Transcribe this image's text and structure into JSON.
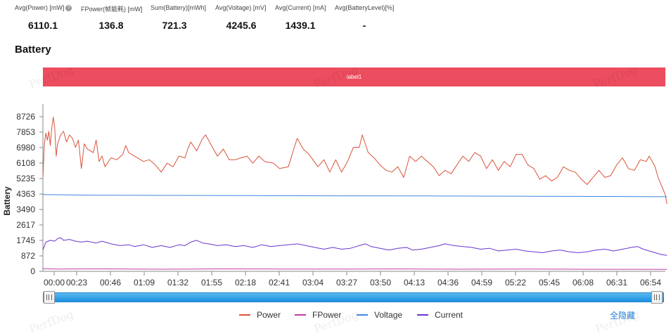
{
  "stats": [
    {
      "label": "Avg(Power) [mW]",
      "value": "6110.1",
      "help": true
    },
    {
      "label": "FPower(帧能耗) [mW]",
      "value": "136.8",
      "help": false
    },
    {
      "label": "Sum(Battery)[mWh]",
      "value": "721.3",
      "help": false
    },
    {
      "label": "Avg(Voltage) [mV]",
      "value": "4245.6",
      "help": false
    },
    {
      "label": "Avg(Current) [mA]",
      "value": "1439.1",
      "help": false
    },
    {
      "label": "Avg(BatteryLevel)[%]",
      "value": "-",
      "help": false
    }
  ],
  "section_title": "Battery",
  "label_bar": "label1",
  "watermark": "PerfDog",
  "hide_all": "全隐藏",
  "help_icon": "?",
  "chart_data": {
    "type": "line",
    "ylabel": "Battery",
    "ylim": [
      0,
      8726
    ],
    "y_ticks": [
      "0",
      "872",
      "1745",
      "2617",
      "3490",
      "4363",
      "5235",
      "6108",
      "6980",
      "7853",
      "8726"
    ],
    "x_ticks": [
      "00:00",
      "00:23",
      "00:46",
      "01:09",
      "01:32",
      "01:55",
      "02:18",
      "02:41",
      "03:04",
      "03:27",
      "03:50",
      "04:13",
      "04:36",
      "04:59",
      "05:22",
      "05:45",
      "06:08",
      "06:31",
      "06:54"
    ],
    "x_range_seconds": [
      0,
      420
    ],
    "grid": false,
    "legend_position": "bottom",
    "series": [
      {
        "name": "Power",
        "color": "#d9533b",
        "points": [
          [
            0,
            5300
          ],
          [
            1,
            7200
          ],
          [
            2,
            7800
          ],
          [
            3,
            7400
          ],
          [
            4,
            7900
          ],
          [
            5,
            7100
          ],
          [
            6,
            8100
          ],
          [
            7,
            8700
          ],
          [
            8,
            8100
          ],
          [
            9,
            6500
          ],
          [
            10,
            7200
          ],
          [
            12,
            7700
          ],
          [
            14,
            7900
          ],
          [
            16,
            7300
          ],
          [
            18,
            7700
          ],
          [
            20,
            7500
          ],
          [
            22,
            7000
          ],
          [
            24,
            7400
          ],
          [
            26,
            5800
          ],
          [
            28,
            7200
          ],
          [
            30,
            6900
          ],
          [
            34,
            6700
          ],
          [
            36,
            7400
          ],
          [
            38,
            6200
          ],
          [
            40,
            6500
          ],
          [
            42,
            5900
          ],
          [
            46,
            6400
          ],
          [
            50,
            6300
          ],
          [
            54,
            6600
          ],
          [
            56,
            7100
          ],
          [
            58,
            6700
          ],
          [
            60,
            6600
          ],
          [
            64,
            6400
          ],
          [
            68,
            6200
          ],
          [
            72,
            6300
          ],
          [
            76,
            6000
          ],
          [
            80,
            5600
          ],
          [
            84,
            6100
          ],
          [
            88,
            5900
          ],
          [
            92,
            6500
          ],
          [
            96,
            6400
          ],
          [
            98,
            6900
          ],
          [
            100,
            7300
          ],
          [
            104,
            6800
          ],
          [
            108,
            7500
          ],
          [
            110,
            7700
          ],
          [
            114,
            7100
          ],
          [
            118,
            6500
          ],
          [
            122,
            6900
          ],
          [
            126,
            6300
          ],
          [
            130,
            6300
          ],
          [
            134,
            6400
          ],
          [
            138,
            6500
          ],
          [
            142,
            6100
          ],
          [
            146,
            6500
          ],
          [
            150,
            6200
          ],
          [
            156,
            6100
          ],
          [
            160,
            5800
          ],
          [
            166,
            5900
          ],
          [
            170,
            7000
          ],
          [
            172,
            7500
          ],
          [
            176,
            6900
          ],
          [
            180,
            6600
          ],
          [
            186,
            5900
          ],
          [
            190,
            6300
          ],
          [
            194,
            5600
          ],
          [
            198,
            6300
          ],
          [
            202,
            5600
          ],
          [
            206,
            6200
          ],
          [
            210,
            7000
          ],
          [
            214,
            7000
          ],
          [
            216,
            7700
          ],
          [
            218,
            7200
          ],
          [
            220,
            6700
          ],
          [
            224,
            6400
          ],
          [
            228,
            6000
          ],
          [
            232,
            5700
          ],
          [
            236,
            5600
          ],
          [
            240,
            5900
          ],
          [
            244,
            5300
          ],
          [
            248,
            6500
          ],
          [
            252,
            6200
          ],
          [
            256,
            6500
          ],
          [
            260,
            6200
          ],
          [
            264,
            5900
          ],
          [
            268,
            5400
          ],
          [
            272,
            5700
          ],
          [
            276,
            5500
          ],
          [
            280,
            6000
          ],
          [
            284,
            6500
          ],
          [
            288,
            6200
          ],
          [
            292,
            6700
          ],
          [
            296,
            6500
          ],
          [
            300,
            5800
          ],
          [
            304,
            6300
          ],
          [
            308,
            5700
          ],
          [
            312,
            6200
          ],
          [
            316,
            5900
          ],
          [
            320,
            6600
          ],
          [
            324,
            6600
          ],
          [
            328,
            6000
          ],
          [
            332,
            5800
          ],
          [
            336,
            5200
          ],
          [
            340,
            5400
          ],
          [
            344,
            5100
          ],
          [
            348,
            5300
          ],
          [
            352,
            5900
          ],
          [
            356,
            5700
          ],
          [
            360,
            5600
          ],
          [
            364,
            5200
          ],
          [
            368,
            4900
          ],
          [
            372,
            5300
          ],
          [
            376,
            5700
          ],
          [
            380,
            5300
          ],
          [
            384,
            5400
          ],
          [
            388,
            6000
          ],
          [
            392,
            6400
          ],
          [
            396,
            5800
          ],
          [
            400,
            5700
          ],
          [
            404,
            6300
          ],
          [
            408,
            6200
          ],
          [
            410,
            6500
          ],
          [
            414,
            5900
          ],
          [
            416,
            5300
          ],
          [
            418,
            4900
          ],
          [
            420,
            4500
          ],
          [
            421,
            4300
          ],
          [
            422,
            3800
          ]
        ]
      },
      {
        "name": "FPower",
        "color": "#c23aa6",
        "points": [
          [
            0,
            150
          ],
          [
            10,
            130
          ],
          [
            40,
            140
          ],
          [
            80,
            120
          ],
          [
            120,
            140
          ],
          [
            160,
            130
          ],
          [
            200,
            125
          ],
          [
            240,
            135
          ],
          [
            280,
            120
          ],
          [
            320,
            130
          ],
          [
            360,
            120
          ],
          [
            400,
            115
          ],
          [
            422,
            110
          ]
        ]
      },
      {
        "name": "Voltage",
        "color": "#3f86e0",
        "points": [
          [
            0,
            4330
          ],
          [
            30,
            4300
          ],
          [
            80,
            4285
          ],
          [
            140,
            4270
          ],
          [
            200,
            4260
          ],
          [
            260,
            4250
          ],
          [
            320,
            4240
          ],
          [
            380,
            4225
          ],
          [
            422,
            4210
          ]
        ]
      },
      {
        "name": "Current",
        "color": "#6a35d0",
        "points": [
          [
            0,
            1200
          ],
          [
            2,
            1650
          ],
          [
            5,
            1750
          ],
          [
            8,
            1700
          ],
          [
            10,
            1850
          ],
          [
            12,
            1900
          ],
          [
            14,
            1750
          ],
          [
            18,
            1800
          ],
          [
            22,
            1700
          ],
          [
            26,
            1650
          ],
          [
            30,
            1700
          ],
          [
            36,
            1600
          ],
          [
            40,
            1700
          ],
          [
            46,
            1550
          ],
          [
            52,
            1450
          ],
          [
            58,
            1500
          ],
          [
            62,
            1400
          ],
          [
            68,
            1500
          ],
          [
            74,
            1350
          ],
          [
            80,
            1450
          ],
          [
            86,
            1350
          ],
          [
            92,
            1500
          ],
          [
            96,
            1450
          ],
          [
            100,
            1650
          ],
          [
            104,
            1750
          ],
          [
            108,
            1600
          ],
          [
            112,
            1550
          ],
          [
            118,
            1450
          ],
          [
            124,
            1500
          ],
          [
            130,
            1400
          ],
          [
            136,
            1450
          ],
          [
            142,
            1350
          ],
          [
            148,
            1500
          ],
          [
            154,
            1400
          ],
          [
            160,
            1450
          ],
          [
            166,
            1500
          ],
          [
            172,
            1550
          ],
          [
            178,
            1450
          ],
          [
            184,
            1350
          ],
          [
            190,
            1250
          ],
          [
            196,
            1350
          ],
          [
            202,
            1250
          ],
          [
            208,
            1300
          ],
          [
            214,
            1450
          ],
          [
            218,
            1550
          ],
          [
            222,
            1400
          ],
          [
            228,
            1300
          ],
          [
            234,
            1200
          ],
          [
            240,
            1300
          ],
          [
            246,
            1350
          ],
          [
            250,
            1200
          ],
          [
            256,
            1250
          ],
          [
            262,
            1350
          ],
          [
            268,
            1450
          ],
          [
            272,
            1550
          ],
          [
            278,
            1450
          ],
          [
            284,
            1400
          ],
          [
            290,
            1350
          ],
          [
            296,
            1250
          ],
          [
            302,
            1300
          ],
          [
            308,
            1150
          ],
          [
            314,
            1200
          ],
          [
            320,
            1250
          ],
          [
            326,
            1150
          ],
          [
            332,
            1100
          ],
          [
            338,
            1050
          ],
          [
            344,
            1150
          ],
          [
            350,
            1200
          ],
          [
            356,
            1100
          ],
          [
            362,
            1050
          ],
          [
            368,
            1100
          ],
          [
            374,
            1200
          ],
          [
            380,
            1250
          ],
          [
            386,
            1150
          ],
          [
            392,
            1250
          ],
          [
            398,
            1350
          ],
          [
            402,
            1400
          ],
          [
            406,
            1250
          ],
          [
            410,
            1150
          ],
          [
            414,
            1050
          ],
          [
            418,
            950
          ],
          [
            422,
            900
          ]
        ]
      }
    ]
  }
}
